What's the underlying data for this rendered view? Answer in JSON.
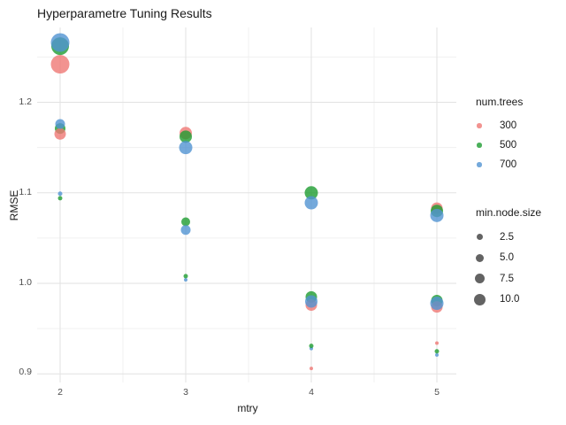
{
  "title": "Hyperparametre Tuning Results",
  "chart_data": {
    "type": "scatter",
    "title": "Hyperparametre Tuning Results",
    "xlabel": "mtry",
    "ylabel": "RMSE",
    "x_ticks": [
      2,
      3,
      4,
      5
    ],
    "x_tick_labels": [
      "2",
      "3",
      "4",
      "5"
    ],
    "y_ticks": [
      0.9,
      1.0,
      1.1,
      1.2
    ],
    "y_tick_labels": [
      "0.9",
      "1.0",
      "1.1",
      "1.2"
    ],
    "xlim": [
      1.82,
      5.16
    ],
    "ylim": [
      0.889,
      1.283
    ],
    "grid": "major-and-minor",
    "legend_position": "right",
    "colors": {
      "300": "#EF7874",
      "500": "#1E9C31",
      "700": "#5194D2"
    },
    "grid_major_color": "#e2e2e2",
    "grid_minor_color": "#f0f0f0",
    "series_legend": {
      "title": "num.trees",
      "entries": [
        {
          "label": "300",
          "trees": "300"
        },
        {
          "label": "500",
          "trees": "500"
        },
        {
          "label": "700",
          "trees": "700"
        }
      ]
    },
    "size_legend": {
      "title": "min.node.size",
      "entries": [
        {
          "label": "2.5",
          "d": 7
        },
        {
          "label": "5.0",
          "d": 9
        },
        {
          "label": "7.5",
          "d": 11
        },
        {
          "label": "10.0",
          "d": 13
        }
      ]
    },
    "points": [
      {
        "mtry": 2,
        "num_trees": "500",
        "rmse": 1.262,
        "d": 20
      },
      {
        "mtry": 2,
        "num_trees": "700",
        "rmse": 1.266,
        "d": 21
      },
      {
        "mtry": 2,
        "num_trees": "300",
        "rmse": 1.242,
        "d": 21
      },
      {
        "mtry": 2,
        "num_trees": "500",
        "rmse": 1.171,
        "d": 12
      },
      {
        "mtry": 2,
        "num_trees": "300",
        "rmse": 1.165,
        "d": 13
      },
      {
        "mtry": 2,
        "num_trees": "700",
        "rmse": 1.176,
        "d": 11
      },
      {
        "mtry": 2,
        "num_trees": "500",
        "rmse": 1.094,
        "d": 5
      },
      {
        "mtry": 2,
        "num_trees": "700",
        "rmse": 1.099,
        "d": 5
      },
      {
        "mtry": 3,
        "num_trees": "300",
        "rmse": 1.166,
        "d": 14
      },
      {
        "mtry": 3,
        "num_trees": "500",
        "rmse": 1.162,
        "d": 14
      },
      {
        "mtry": 3,
        "num_trees": "700",
        "rmse": 1.15,
        "d": 15
      },
      {
        "mtry": 3,
        "num_trees": "500",
        "rmse": 1.068,
        "d": 10
      },
      {
        "mtry": 3,
        "num_trees": "700",
        "rmse": 1.059,
        "d": 11
      },
      {
        "mtry": 3,
        "num_trees": "700",
        "rmse": 1.004,
        "d": 4
      },
      {
        "mtry": 3,
        "num_trees": "500",
        "rmse": 1.008,
        "d": 5
      },
      {
        "mtry": 4,
        "num_trees": "500",
        "rmse": 1.1,
        "d": 15
      },
      {
        "mtry": 4,
        "num_trees": "700",
        "rmse": 1.089,
        "d": 15
      },
      {
        "mtry": 4,
        "num_trees": "500",
        "rmse": 0.985,
        "d": 13
      },
      {
        "mtry": 4,
        "num_trees": "300",
        "rmse": 0.976,
        "d": 13
      },
      {
        "mtry": 4,
        "num_trees": "700",
        "rmse": 0.98,
        "d": 14
      },
      {
        "mtry": 4,
        "num_trees": "700",
        "rmse": 0.928,
        "d": 4
      },
      {
        "mtry": 4,
        "num_trees": "500",
        "rmse": 0.931,
        "d": 5
      },
      {
        "mtry": 4,
        "num_trees": "300",
        "rmse": 0.906,
        "d": 4
      },
      {
        "mtry": 5,
        "num_trees": "300",
        "rmse": 1.083,
        "d": 13
      },
      {
        "mtry": 5,
        "num_trees": "500",
        "rmse": 1.08,
        "d": 14
      },
      {
        "mtry": 5,
        "num_trees": "700",
        "rmse": 1.075,
        "d": 15
      },
      {
        "mtry": 5,
        "num_trees": "500",
        "rmse": 0.981,
        "d": 13
      },
      {
        "mtry": 5,
        "num_trees": "300",
        "rmse": 0.974,
        "d": 13
      },
      {
        "mtry": 5,
        "num_trees": "700",
        "rmse": 0.978,
        "d": 15
      },
      {
        "mtry": 5,
        "num_trees": "300",
        "rmse": 0.934,
        "d": 4
      },
      {
        "mtry": 5,
        "num_trees": "700",
        "rmse": 0.921,
        "d": 4
      },
      {
        "mtry": 5,
        "num_trees": "500",
        "rmse": 0.925,
        "d": 5
      }
    ]
  }
}
